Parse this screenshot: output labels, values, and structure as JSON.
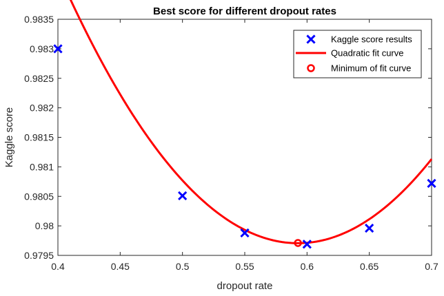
{
  "chart_data": {
    "type": "line",
    "title": "Best score for different dropout rates",
    "xlabel": "dropout rate",
    "ylabel": "Kaggle score",
    "xlim": [
      0.4,
      0.7
    ],
    "ylim": [
      0.9795,
      0.9835
    ],
    "x_ticks": [
      "0.4",
      "0.45",
      "0.5",
      "0.55",
      "0.6",
      "0.65",
      "0.7"
    ],
    "y_ticks": [
      "0.9795",
      "0.98",
      "0.9805",
      "0.981",
      "0.9815",
      "0.982",
      "0.9825",
      "0.983",
      "0.9835"
    ],
    "grid": false,
    "legend_position": "top-right",
    "series": [
      {
        "name": "Kaggle score results",
        "kind": "markers",
        "marker": "x",
        "color": "#0000ff",
        "x": [
          0.4,
          0.5,
          0.55,
          0.6,
          0.65,
          0.7
        ],
        "y": [
          0.983,
          0.98051,
          0.97988,
          0.97969,
          0.97996,
          0.98072
        ]
      },
      {
        "name": "Quadratic fit curve",
        "kind": "line",
        "color": "#ff0000",
        "fit": "quadratic",
        "x_range": [
          0.4,
          0.7
        ],
        "coefficients": {
          "a": 0.1238,
          "b": -0.14675,
          "c": 1.023195
        }
      },
      {
        "name": "Minimum of fit curve",
        "kind": "markers",
        "marker": "o",
        "color": "#ff0000",
        "x": [
          0.5927
        ],
        "y": [
          0.97971
        ]
      }
    ]
  }
}
